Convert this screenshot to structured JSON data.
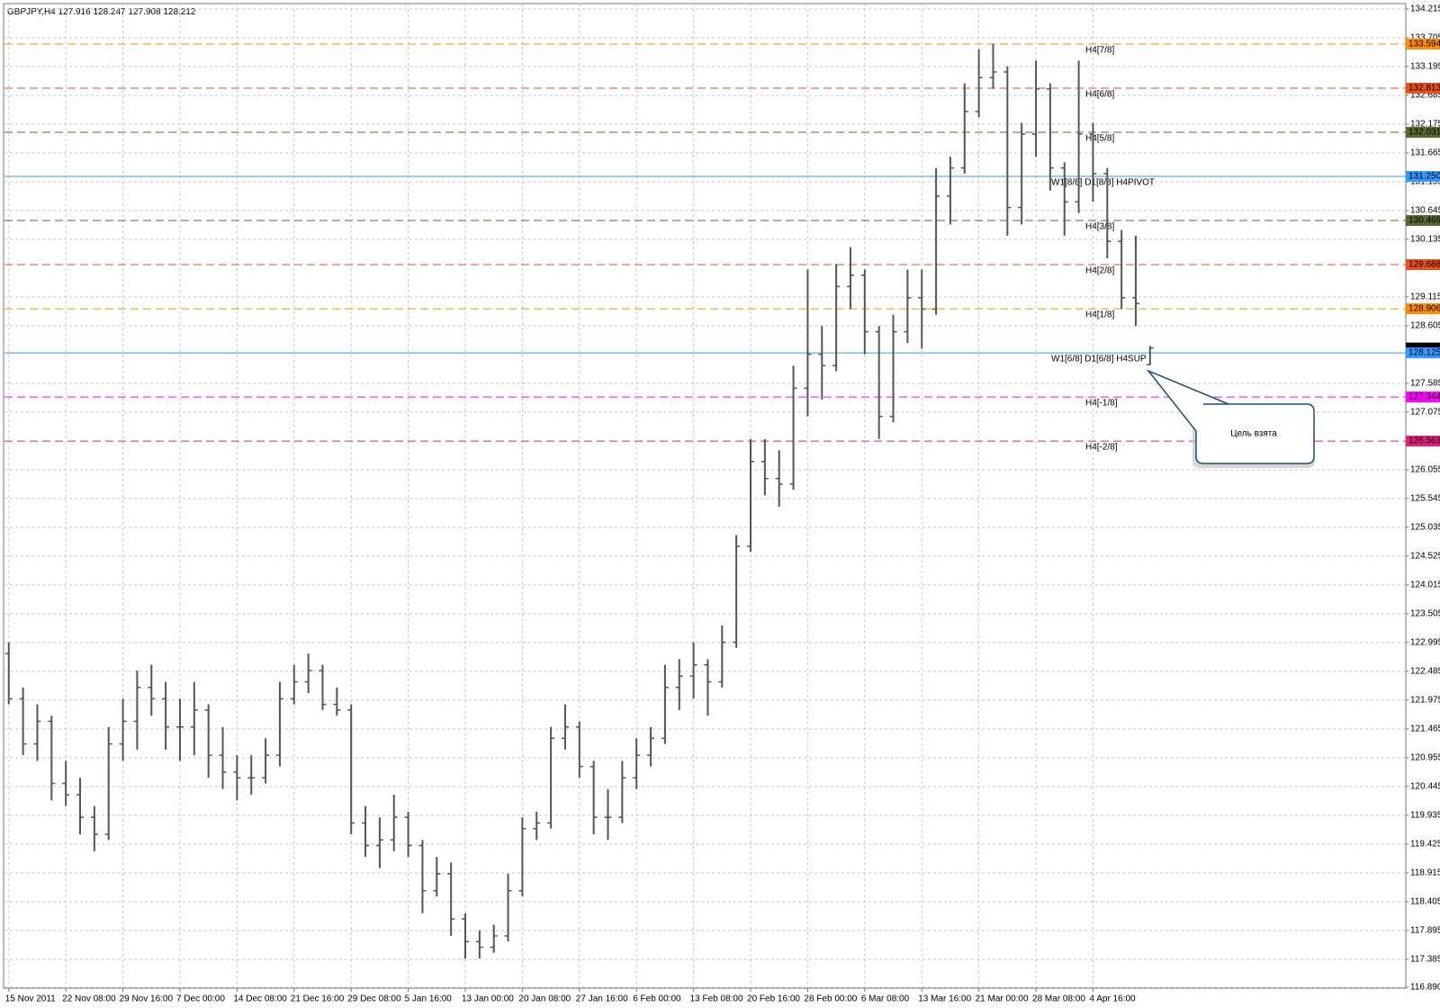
{
  "chart_data": {
    "type": "ohlc",
    "symbol": "GBPJPY,H4",
    "color": "#555555",
    "grid": true,
    "annotation": "Цель взята",
    "open": [
      122.8,
      122.0,
      121.2,
      121.6,
      120.5,
      120.3,
      119.9,
      119.6,
      121.2,
      121.6,
      122.2,
      122.0,
      121.5,
      121.5,
      121.8,
      121.0,
      120.7,
      120.6,
      120.6,
      121.0,
      122.0,
      122.3,
      122.5,
      121.9,
      121.8,
      119.8,
      119.4,
      119.5,
      119.9,
      119.4,
      118.6,
      118.9,
      118.1,
      117.7,
      117.6,
      117.8,
      118.6,
      119.7,
      119.8,
      121.3,
      121.5,
      120.8,
      119.9,
      119.9,
      120.6,
      121.0,
      121.3,
      122.2,
      122.4,
      122.6,
      122.3,
      123.0,
      124.7,
      126.2,
      125.9,
      125.8,
      127.5,
      128.1,
      127.9,
      129.3,
      129.5,
      128.5,
      127.0,
      128.5,
      129.1,
      128.9,
      130.9,
      131.4,
      132.4,
      133.0,
      133.1,
      130.7,
      132.0,
      132.8,
      131.4,
      130.8,
      132.0,
      131.3,
      130.1,
      129.1,
      127.916
    ],
    "high": [
      123.0,
      122.2,
      121.9,
      121.7,
      120.9,
      120.6,
      120.1,
      121.5,
      122.0,
      122.5,
      122.6,
      122.3,
      122.0,
      122.3,
      121.9,
      121.5,
      121.0,
      121.0,
      121.3,
      122.3,
      122.6,
      122.8,
      122.6,
      122.2,
      121.9,
      120.1,
      119.9,
      120.3,
      120.0,
      119.5,
      119.2,
      119.1,
      118.2,
      117.9,
      118.0,
      118.9,
      119.9,
      120.0,
      121.5,
      121.9,
      121.6,
      120.9,
      120.4,
      120.9,
      121.3,
      121.5,
      122.6,
      122.7,
      123.0,
      122.7,
      123.3,
      124.9,
      126.6,
      126.6,
      126.4,
      127.9,
      129.6,
      128.6,
      129.7,
      130.0,
      129.6,
      128.6,
      128.8,
      129.6,
      129.6,
      131.4,
      131.6,
      132.9,
      133.5,
      133.6,
      133.2,
      132.2,
      133.3,
      132.9,
      131.5,
      133.3,
      132.2,
      131.4,
      130.3,
      130.2,
      128.247
    ],
    "low": [
      121.9,
      121.0,
      120.9,
      120.2,
      120.1,
      119.6,
      119.3,
      119.5,
      120.9,
      121.1,
      121.7,
      121.1,
      120.9,
      121.0,
      120.6,
      120.4,
      120.2,
      120.3,
      120.5,
      120.8,
      121.9,
      122.1,
      121.8,
      121.7,
      119.6,
      119.2,
      119.0,
      119.3,
      119.2,
      118.2,
      118.5,
      117.8,
      117.4,
      117.4,
      117.5,
      117.7,
      118.5,
      119.5,
      119.7,
      121.1,
      120.6,
      119.6,
      119.5,
      119.8,
      120.4,
      120.8,
      121.2,
      121.8,
      122.0,
      121.7,
      122.2,
      122.9,
      124.6,
      125.6,
      125.4,
      125.7,
      127.0,
      127.3,
      127.8,
      128.9,
      128.1,
      126.6,
      126.9,
      128.3,
      128.2,
      128.8,
      130.4,
      131.3,
      132.3,
      132.8,
      130.2,
      130.4,
      131.6,
      131.0,
      130.2,
      130.6,
      130.8,
      129.8,
      128.9,
      128.6,
      127.908
    ],
    "close": [
      122.0,
      121.2,
      121.6,
      120.5,
      120.3,
      119.9,
      119.6,
      121.2,
      121.6,
      122.2,
      122.0,
      121.5,
      121.5,
      121.8,
      121.0,
      120.7,
      120.6,
      120.6,
      121.0,
      122.0,
      122.3,
      122.5,
      121.9,
      121.8,
      119.8,
      119.4,
      119.5,
      119.9,
      119.4,
      118.6,
      118.9,
      118.1,
      117.7,
      117.6,
      117.8,
      118.6,
      119.7,
      119.8,
      121.3,
      121.5,
      120.8,
      119.9,
      119.9,
      120.6,
      121.0,
      121.3,
      122.2,
      122.4,
      122.6,
      122.3,
      123.0,
      124.7,
      126.2,
      125.9,
      125.8,
      127.5,
      128.1,
      127.9,
      129.3,
      129.5,
      128.5,
      127.0,
      128.5,
      129.1,
      128.9,
      130.9,
      131.4,
      132.4,
      133.0,
      133.1,
      130.7,
      132.0,
      132.8,
      131.4,
      130.8,
      132.0,
      131.3,
      130.1,
      129.1,
      129.0,
      128.212
    ],
    "xlim": [
      -0.3,
      97.8
    ],
    "xticks": [
      {
        "value": 0,
        "label": "15 Nov 2011"
      },
      {
        "value": 4,
        "label": "22 Nov 08:00"
      },
      {
        "value": 8,
        "label": "29 Nov 16:00"
      },
      {
        "value": 12,
        "label": "7 Dec 00:00"
      },
      {
        "value": 16,
        "label": "14 Dec 08:00"
      },
      {
        "value": 20,
        "label": "21 Dec 16:00"
      },
      {
        "value": 24,
        "label": "29 Dec 08:00"
      },
      {
        "value": 28,
        "label": "5 Jan 16:00"
      },
      {
        "value": 32,
        "label": "13 Jan 00:00"
      },
      {
        "value": 36,
        "label": "20 Jan 08:00"
      },
      {
        "value": 40,
        "label": "27 Jan 16:00"
      },
      {
        "value": 44,
        "label": "6 Feb 00:00"
      },
      {
        "value": 48,
        "label": "13 Feb 08:00"
      },
      {
        "value": 52,
        "label": "20 Feb 16:00"
      },
      {
        "value": 56,
        "label": "28 Feb 00:00"
      },
      {
        "value": 60,
        "label": "6 Mar 08:00"
      },
      {
        "value": 64,
        "label": "13 Mar 16:00"
      },
      {
        "value": 68,
        "label": "21 Mar 00:00"
      },
      {
        "value": 72,
        "label": "28 Mar 08:00"
      },
      {
        "value": 76,
        "label": "4 Apr 16:00"
      }
    ],
    "ylim": [
      116.89,
      134.215
    ],
    "yticks": [
      134.215,
      133.705,
      133.195,
      132.685,
      132.175,
      131.665,
      131.155,
      130.645,
      130.135,
      129.115,
      128.605,
      127.585,
      127.075,
      126.055,
      125.545,
      125.035,
      124.525,
      124.015,
      123.505,
      122.995,
      122.485,
      121.975,
      121.465,
      120.955,
      120.445,
      119.935,
      119.425,
      118.915,
      118.405,
      117.895,
      117.385,
      {
        "value": 116.89,
        "label": "116.890"
      }
    ],
    "levels": [
      {
        "name": "H4[7/8]",
        "value": 133.594,
        "color": "#ff8c00",
        "style": "dashed"
      },
      {
        "name": "H4[6/8]",
        "value": 132.813,
        "color": "#e8501a",
        "style": "dashed"
      },
      {
        "name": "H4[5/8]",
        "value": 132.031,
        "color": "#556b2f",
        "style": "dashed"
      },
      {
        "name": "W1[8/8] D1[8/8] H4PIVOT",
        "value": 131.25,
        "value_label": "131.250",
        "color": "#3399ff",
        "style": "solid"
      },
      {
        "name": "H4[3/8]",
        "value": 130.469,
        "color": "#556b2f",
        "style": "dashed"
      },
      {
        "name": "H4[2/8]",
        "value": 129.688,
        "color": "#e8501a",
        "style": "dashed"
      },
      {
        "name": "H4[1/8]",
        "value": 128.906,
        "color": "#ff8c00",
        "style": "dashed"
      },
      {
        "name": "W1[6/8] D1[6/8] H4SUP",
        "value": 128.125,
        "color": "#3399ff",
        "style": "solid"
      },
      {
        "name": "H4[-1/8]",
        "value": 127.344,
        "color": "#ff00ff",
        "style": "dashed"
      },
      {
        "name": "H4[-2/8]",
        "value": 126.563,
        "color": "#e0207a",
        "style": "dashed"
      }
    ]
  }
}
